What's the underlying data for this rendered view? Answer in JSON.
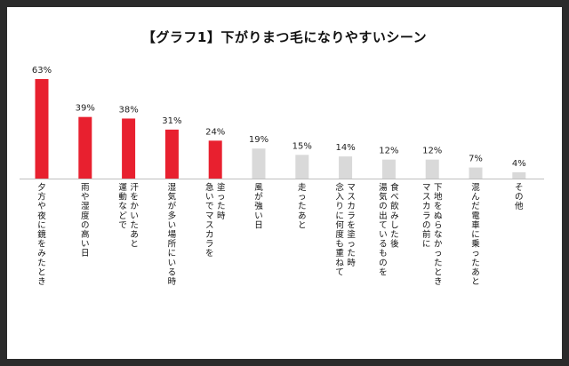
{
  "chart_data": {
    "type": "bar",
    "title": "【グラフ1】下がりまつ毛になりやすいシーン",
    "categories": [
      [
        "夕方や夜に鏡をみたとき"
      ],
      [
        "雨や湿度の高い日"
      ],
      [
        "汗をかいたあと",
        "運動などで"
      ],
      [
        "湿気が多い場所にいる時"
      ],
      [
        "塗った時",
        "急いでマスカラを"
      ],
      [
        "風が強い日"
      ],
      [
        "走ったあと"
      ],
      [
        "マスカラを塗った時",
        "念入りに何度も重ねて"
      ],
      [
        "食べ飲みした後",
        "湯気の出ているものを"
      ],
      [
        "下地をぬらなかったとき",
        "マスカラの前に"
      ],
      [
        "混んだ電車に乗ったあと"
      ],
      [
        "その他"
      ]
    ],
    "values": [
      63,
      39,
      38,
      31,
      24,
      19,
      15,
      14,
      12,
      12,
      7,
      4
    ],
    "value_labels": [
      "63%",
      "39%",
      "38%",
      "31%",
      "24%",
      "19%",
      "15%",
      "14%",
      "12%",
      "12%",
      "7%",
      "4%"
    ],
    "highlight_count": 5,
    "colors": {
      "highlight": "#e8202f",
      "normal": "#d9d9d9",
      "axis": "#bfbfbf"
    },
    "ylim": [
      0,
      63
    ],
    "grid": false,
    "legend": "none",
    "xlabel": "",
    "ylabel": ""
  }
}
